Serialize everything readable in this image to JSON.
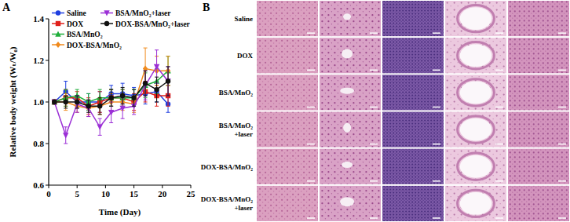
{
  "panel_labels": [
    "A",
    "B"
  ],
  "chart_data": {
    "type": "line",
    "x_label": "Time (Day)",
    "y_label": "Relative body weight (Wₜ/W₀)",
    "x": [
      1,
      3,
      5,
      7,
      9,
      11,
      13,
      15,
      17,
      19,
      21
    ],
    "xlim": [
      0,
      25
    ],
    "xticks": [
      0,
      5,
      10,
      15,
      20,
      25
    ],
    "ylim": [
      0.6,
      1.4
    ],
    "yticks": [
      0.6,
      0.8,
      {
        "value": 1,
        "label": "1.0"
      },
      1.2,
      1.4
    ],
    "legend": "top",
    "series": [
      {
        "name": "Saline",
        "color": "#1f3fe0",
        "marker": "circle",
        "values": [
          1.0,
          1.05,
          1.0,
          1.0,
          1.0,
          1.04,
          1.04,
          1.03,
          1.04,
          1.05,
          0.99
        ],
        "errors": [
          0.01,
          0.05,
          0.03,
          0.04,
          0.05,
          0.04,
          0.05,
          0.04,
          0.05,
          0.05,
          0.04
        ]
      },
      {
        "name": "DOX",
        "color": "#e0201b",
        "marker": "square",
        "values": [
          1.0,
          1.02,
          1.02,
          0.98,
          1.0,
          1.02,
          1.02,
          1.0,
          1.05,
          1.03,
          1.03
        ],
        "errors": [
          0.01,
          0.04,
          0.03,
          0.04,
          0.05,
          0.04,
          0.04,
          0.04,
          0.05,
          0.05,
          0.05
        ]
      },
      {
        "name": "BSA/MnO₂",
        "color": "#1fae3a",
        "marker": "triangle-up",
        "values": [
          1.0,
          1.02,
          1.03,
          1.0,
          1.02,
          1.02,
          1.02,
          1.02,
          1.08,
          1.1,
          1.15
        ],
        "errors": [
          0.01,
          0.04,
          0.03,
          0.04,
          0.04,
          0.04,
          0.04,
          0.04,
          0.06,
          0.06,
          0.07
        ]
      },
      {
        "name": "DOX-BSA/MnO₂",
        "color": "#f08a1c",
        "marker": "diamond",
        "values": [
          1.0,
          1.0,
          0.98,
          0.97,
          0.98,
          1.0,
          1.0,
          0.99,
          1.16,
          1.15,
          1.15
        ],
        "errors": [
          0.01,
          0.04,
          0.03,
          0.04,
          0.04,
          0.04,
          0.04,
          0.04,
          0.1,
          0.07,
          0.07
        ]
      },
      {
        "name": "BSA/MnO₂+laser",
        "color": "#9b2fd6",
        "marker": "triangle-down",
        "values": [
          1.0,
          0.84,
          0.99,
          0.97,
          0.88,
          0.95,
          0.97,
          0.98,
          1.08,
          1.17,
          1.1
        ],
        "errors": [
          0.01,
          0.04,
          0.04,
          0.04,
          0.04,
          0.05,
          0.05,
          0.04,
          0.07,
          0.08,
          0.07
        ]
      },
      {
        "name": "DOX-BSA/MnO₂+laser",
        "color": "#111111",
        "marker": "circle",
        "values": [
          1.0,
          1.0,
          1.0,
          0.98,
          0.98,
          1.02,
          1.03,
          1.02,
          1.09,
          1.06,
          1.1
        ],
        "errors": [
          0.01,
          0.03,
          0.03,
          0.03,
          0.04,
          0.04,
          0.04,
          0.04,
          0.06,
          0.06,
          0.07
        ]
      }
    ]
  },
  "histology": {
    "rows": [
      [
        "Saline"
      ],
      [
        "DOX"
      ],
      [
        "BSA/MnO₂"
      ],
      [
        "BSA/MnO₂",
        "+laser"
      ],
      [
        "DOX-BSA/MnO₂"
      ],
      [
        "DOX-BSA/MnO₂",
        "+laser"
      ]
    ]
  }
}
